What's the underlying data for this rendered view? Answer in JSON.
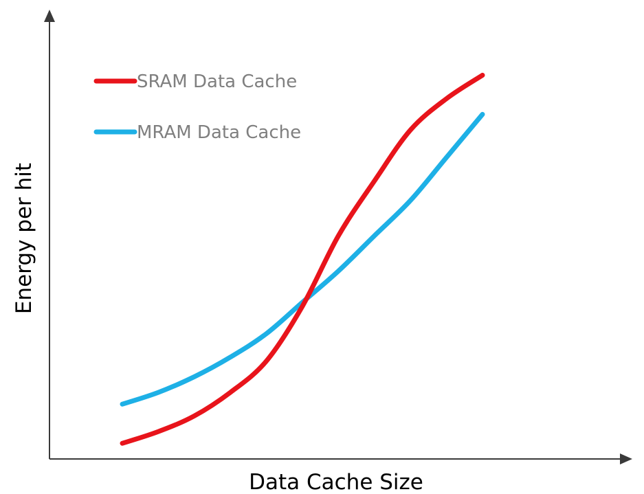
{
  "chart_data": {
    "type": "line",
    "title": "",
    "xlabel": "Data Cache Size",
    "ylabel": "Energy per hit",
    "grid": false,
    "legend_position": "top-left",
    "xlim": [
      0,
      100
    ],
    "ylim": [
      0,
      100
    ],
    "ticks_shown": false,
    "series": [
      {
        "name": "SRAM Data Cache",
        "color": "#e8141b",
        "x": [
          0,
          10,
          20,
          30,
          40,
          50,
          60,
          70,
          80,
          90,
          100
        ],
        "values": [
          4,
          7,
          11,
          17,
          25,
          39,
          57,
          71,
          84,
          92,
          98
        ]
      },
      {
        "name": "MRAM Data Cache",
        "color": "#1eb0e6",
        "x": [
          0,
          10,
          20,
          30,
          40,
          50,
          60,
          70,
          80,
          90,
          100
        ],
        "values": [
          14,
          17,
          21,
          26,
          32,
          40,
          48,
          57,
          66,
          77,
          88
        ]
      }
    ]
  }
}
